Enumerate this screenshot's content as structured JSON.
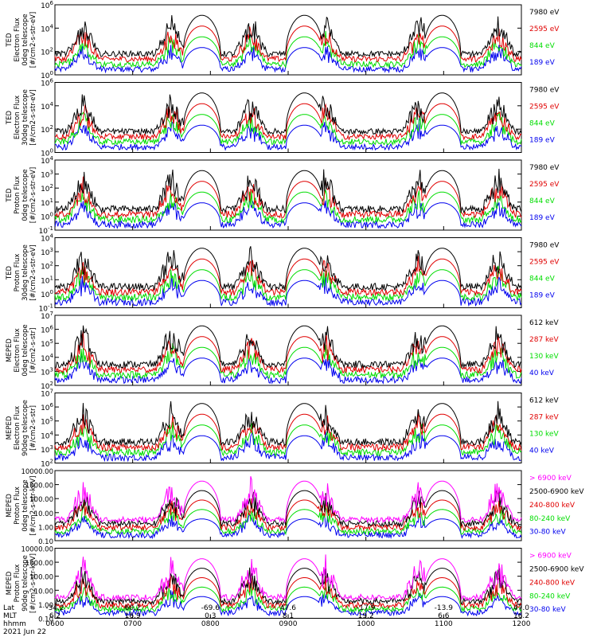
{
  "footer": {
    "row_labels": [
      "Lat",
      "MLT",
      "hhmm"
    ],
    "date": "2021 Jun 22",
    "lat_ticks": [
      "-34.2",
      "60.2",
      "-69.6",
      "47.6",
      "-17.9",
      "-13.9",
      "47.0"
    ],
    "mlt_ticks": [
      "6.2",
      "16.9",
      "0.3",
      "8.1",
      "19.2",
      "6.6",
      "16.2"
    ],
    "time_ticks": [
      "0600",
      "0700",
      "0800",
      "0900",
      "1000",
      "1100",
      "1200"
    ]
  },
  "colors": {
    "black": "#000000",
    "red": "#e00000",
    "green": "#00dd00",
    "blue": "#0000ee",
    "magenta": "#ff00ff"
  },
  "chart_data": [
    {
      "type": "line",
      "panel": 1,
      "yscale": "log",
      "ylabel": [
        "TED",
        "Electron Flux",
        "0deg telescope",
        "[#/cm2-s-str-eV]"
      ],
      "ylim": [
        1,
        1000000
      ],
      "yticks": [
        "10^0",
        "10^2",
        "10^4",
        "10^6"
      ],
      "series": [
        {
          "name": "7980 eV",
          "color": "black"
        },
        {
          "name": "2595 eV",
          "color": "red"
        },
        {
          "name": "844 eV",
          "color": "green"
        },
        {
          "name": "189 eV",
          "color": "blue"
        }
      ]
    },
    {
      "type": "line",
      "panel": 2,
      "yscale": "log",
      "ylabel": [
        "TED",
        "Electron Flux",
        "30deg telescope",
        "[#/cm2-s-str-eV]"
      ],
      "ylim": [
        1,
        1000000
      ],
      "yticks": [
        "10^0",
        "10^2",
        "10^4",
        "10^6"
      ],
      "series": [
        {
          "name": "7980 eV",
          "color": "black"
        },
        {
          "name": "2595 eV",
          "color": "red"
        },
        {
          "name": "844 eV",
          "color": "green"
        },
        {
          "name": "189 eV",
          "color": "blue"
        }
      ]
    },
    {
      "type": "line",
      "panel": 3,
      "yscale": "log",
      "ylabel": [
        "TED",
        "Proton Flux",
        "0deg telescope",
        "[#/cm2-s-str-eV]"
      ],
      "ylim": [
        0.1,
        10000
      ],
      "yticks": [
        "10^-1",
        "10^0",
        "10^1",
        "10^2",
        "10^3",
        "10^4"
      ],
      "series": [
        {
          "name": "7980 eV",
          "color": "black"
        },
        {
          "name": "2595 eV",
          "color": "red"
        },
        {
          "name": "844 eV",
          "color": "green"
        },
        {
          "name": "189 eV",
          "color": "blue"
        }
      ]
    },
    {
      "type": "line",
      "panel": 4,
      "yscale": "log",
      "ylabel": [
        "TED",
        "Proton Flux",
        "30deg telescope",
        "[#/cm2-s-str-eV]"
      ],
      "ylim": [
        0.1,
        10000
      ],
      "yticks": [
        "10^-1",
        "10^0",
        "10^1",
        "10^2",
        "10^3",
        "10^4"
      ],
      "series": [
        {
          "name": "7980 eV",
          "color": "black"
        },
        {
          "name": "2595 eV",
          "color": "red"
        },
        {
          "name": "844 eV",
          "color": "green"
        },
        {
          "name": "189 eV",
          "color": "blue"
        }
      ]
    },
    {
      "type": "line",
      "panel": 5,
      "yscale": "log",
      "ylabel": [
        "MEPED",
        "Electron Flux",
        "0deg telescope",
        "[#/cm2-s-str]"
      ],
      "ylim": [
        100,
        10000000
      ],
      "yticks": [
        "10^2",
        "10^3",
        "10^4",
        "10^5",
        "10^6",
        "10^7"
      ],
      "series": [
        {
          "name": "612 keV",
          "color": "black"
        },
        {
          "name": "287 keV",
          "color": "red"
        },
        {
          "name": "130 keV",
          "color": "green"
        },
        {
          "name": "40 keV",
          "color": "blue"
        }
      ]
    },
    {
      "type": "line",
      "panel": 6,
      "yscale": "log",
      "ylabel": [
        "MEPED",
        "Electron Flux",
        "90deg telescope",
        "[#/cm2-s-str]"
      ],
      "ylim": [
        100,
        10000000
      ],
      "yticks": [
        "10^2",
        "10^3",
        "10^4",
        "10^5",
        "10^6",
        "10^7"
      ],
      "series": [
        {
          "name": "612 keV",
          "color": "black"
        },
        {
          "name": "287 keV",
          "color": "red"
        },
        {
          "name": "130 keV",
          "color": "green"
        },
        {
          "name": "40 keV",
          "color": "blue"
        }
      ]
    },
    {
      "type": "line",
      "panel": 7,
      "yscale": "log",
      "ylabel": [
        "MEPED",
        "Proton Flux",
        "0deg telescope",
        "[#/cm2-s-str-keV]"
      ],
      "ylim": [
        0.01,
        10000
      ],
      "yticks": [
        "0.10",
        "1.00",
        "10.00",
        "100.00",
        "1000.00",
        "10000.00"
      ],
      "series": [
        {
          "name": "> 6900 keV",
          "color": "magenta"
        },
        {
          "name": "2500-6900 keV",
          "color": "black"
        },
        {
          "name": "240-800 keV",
          "color": "red"
        },
        {
          "name": "80-240 keV",
          "color": "green"
        },
        {
          "name": "30-80 keV",
          "color": "blue"
        }
      ]
    },
    {
      "type": "line",
      "panel": 8,
      "yscale": "log",
      "ylabel": [
        "MEPED",
        "Proton Flux",
        "90deg telescope",
        "[#/cm2-s-str-keV]"
      ],
      "ylim": [
        0.01,
        10000
      ],
      "yticks": [
        "0.10",
        "1.00",
        "10.00",
        "100.00",
        "1000.00",
        "10000.00"
      ],
      "series": [
        {
          "name": "> 6900 keV",
          "color": "magenta"
        },
        {
          "name": "2500-6900 keV",
          "color": "black"
        },
        {
          "name": "240-800 keV",
          "color": "red"
        },
        {
          "name": "80-240 keV",
          "color": "green"
        },
        {
          "name": "30-80 keV",
          "color": "blue"
        }
      ]
    }
  ]
}
